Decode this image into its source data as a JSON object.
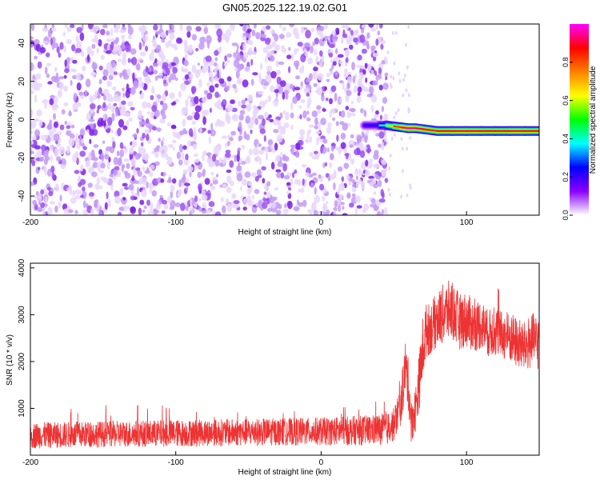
{
  "figure": {
    "title": "GN05.2025.122.19.02.G01"
  },
  "chart_data": [
    {
      "type": "heatmap",
      "xlabel": "Height of straight line (km)",
      "ylabel": "Frequency (Hz)",
      "xlim": [
        -200,
        150
      ],
      "ylim": [
        -50,
        50
      ],
      "xticks": [
        -200,
        -100,
        0,
        100
      ],
      "yticks": [
        -40,
        -20,
        0,
        20,
        40
      ],
      "noise_region_x": [
        -200,
        45
      ],
      "signal_trace": {
        "x": [
          30,
          40,
          45,
          50,
          55,
          60,
          65,
          70,
          75,
          80,
          90,
          100,
          110,
          120,
          130,
          140,
          150
        ],
        "y": [
          -3,
          -3,
          -3,
          -3.5,
          -4,
          -4.5,
          -4.5,
          -5,
          -5.5,
          -6,
          -6,
          -6,
          -6,
          -6,
          -6,
          -6,
          -6
        ],
        "amplitude": [
          0.15,
          0.3,
          0.5,
          0.75,
          0.9,
          1.0,
          0.95,
          0.9,
          0.85,
          0.85,
          0.9,
          0.9,
          0.9,
          0.85,
          0.9,
          0.9,
          0.85
        ]
      },
      "colorbar": {
        "label": "Normalized spectral amplitude",
        "range": [
          0,
          1
        ],
        "ticks": [
          "0.0",
          "0.2",
          "0.4",
          "0.6",
          "0.8"
        ],
        "colors": [
          "#ffffff",
          "#8b00ff",
          "#0000ff",
          "#00ffff",
          "#00ff00",
          "#ffff00",
          "#ff8000",
          "#ff0000",
          "#ff00ff"
        ]
      }
    },
    {
      "type": "line",
      "xlabel": "Height of straight line (km)",
      "ylabel": "SNR (10 * v/v)",
      "xlim": [
        -200,
        150
      ],
      "ylim": [
        0,
        4100
      ],
      "xticks": [
        -200,
        -100,
        0,
        100
      ],
      "yticks": [
        1000,
        2000,
        3000,
        4000
      ],
      "series": [
        {
          "color": "#ee3333",
          "x": [
            -200,
            -150,
            -100,
            -50,
            0,
            30,
            45,
            50,
            55,
            58,
            60,
            62,
            65,
            68,
            70,
            72,
            75,
            80,
            85,
            90,
            95,
            100,
            105,
            110,
            115,
            120,
            125,
            130,
            135,
            140,
            145,
            150
          ],
          "y": [
            420,
            450,
            470,
            490,
            510,
            530,
            560,
            650,
            1100,
            1900,
            1500,
            700,
            1000,
            1700,
            2300,
            2650,
            2700,
            2900,
            3050,
            3100,
            2850,
            2900,
            2750,
            2800,
            2600,
            2650,
            2550,
            2500,
            2400,
            2300,
            2450,
            2400
          ],
          "spread": [
            280,
            280,
            290,
            290,
            300,
            320,
            340,
            360,
            450,
            600,
            550,
            450,
            500,
            650,
            700,
            600,
            550,
            600,
            650,
            650,
            600,
            600,
            550,
            550,
            500,
            550,
            500,
            550,
            550,
            550,
            600,
            600
          ]
        }
      ]
    }
  ]
}
